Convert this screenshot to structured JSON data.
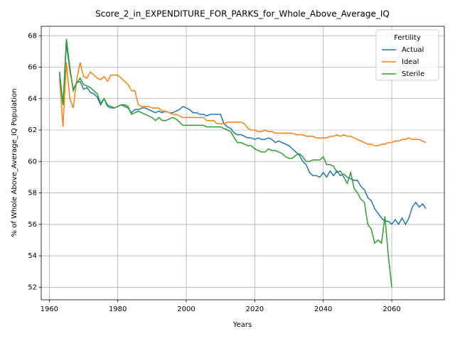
{
  "chart_data": {
    "type": "line",
    "title": "Score_2_in_EXPENDITURE_FOR_PARKS_for_Whole_Above_Average_IQ",
    "xlabel": "Years",
    "ylabel": "% of Whole Above_Average_IQ Population",
    "legend_title": "Fertility",
    "legend": "upper right",
    "grid": true,
    "xlim": [
      1957.65,
      2075.35
    ],
    "ylim": [
      51.2,
      68.6
    ],
    "xticks": [
      1960,
      1980,
      2000,
      2020,
      2040,
      2060
    ],
    "yticks": [
      52,
      54,
      56,
      58,
      60,
      62,
      64,
      66,
      68
    ],
    "x": [
      1963,
      1964,
      1965,
      1966,
      1967,
      1968,
      1969,
      1970,
      1971,
      1972,
      1973,
      1974,
      1975,
      1976,
      1977,
      1978,
      1979,
      1980,
      1981,
      1982,
      1983,
      1984,
      1985,
      1986,
      1987,
      1988,
      1989,
      1990,
      1991,
      1992,
      1993,
      1994,
      1995,
      1996,
      1997,
      1998,
      1999,
      2000,
      2001,
      2002,
      2003,
      2004,
      2005,
      2006,
      2007,
      2008,
      2009,
      2010,
      2011,
      2012,
      2013,
      2014,
      2015,
      2016,
      2017,
      2018,
      2019,
      2020,
      2021,
      2022,
      2023,
      2024,
      2025,
      2026,
      2027,
      2028,
      2029,
      2030,
      2031,
      2032,
      2033,
      2034,
      2035,
      2036,
      2037,
      2038,
      2039,
      2040,
      2041,
      2042,
      2043,
      2044,
      2045,
      2046,
      2047,
      2048,
      2049,
      2050,
      2051,
      2052,
      2053,
      2054,
      2055,
      2056,
      2057,
      2058,
      2059,
      2060,
      2061,
      2062,
      2063,
      2064,
      2065,
      2066,
      2067,
      2068,
      2069,
      2070
    ],
    "series": [
      {
        "name": "Actual",
        "color": "#1f77b4",
        "values": [
          65.7,
          63.6,
          67.5,
          65.8,
          64.6,
          65.0,
          65.1,
          64.6,
          64.7,
          64.4,
          64.3,
          64.1,
          63.6,
          64.0,
          63.5,
          63.4,
          63.4,
          63.5,
          63.6,
          63.5,
          63.4,
          63.1,
          63.3,
          63.3,
          63.4,
          63.4,
          63.3,
          63.2,
          63.1,
          63.2,
          63.1,
          63.2,
          63.1,
          63.1,
          63.2,
          63.3,
          63.5,
          63.4,
          63.3,
          63.1,
          63.1,
          63.0,
          63.0,
          62.9,
          63.0,
          63.0,
          63.0,
          63.0,
          62.4,
          62.2,
          62.1,
          61.8,
          61.7,
          61.7,
          61.6,
          61.5,
          61.5,
          61.4,
          61.5,
          61.4,
          61.4,
          61.5,
          61.4,
          61.2,
          61.3,
          61.2,
          61.1,
          61.0,
          60.8,
          60.6,
          60.4,
          60.0,
          59.8,
          59.3,
          59.1,
          59.1,
          59.0,
          59.3,
          59.0,
          59.4,
          59.1,
          59.4,
          59.1,
          59.2,
          59.0,
          58.9,
          58.8,
          58.8,
          58.4,
          58.2,
          57.7,
          57.5,
          57.0,
          56.7,
          56.4,
          56.2,
          56.2,
          56.0,
          56.3,
          56.0,
          56.4,
          56.0,
          56.4,
          57.1,
          57.4,
          57.1,
          57.3,
          57.0
        ]
      },
      {
        "name": "Ideal",
        "color": "#ff7f0e",
        "values": [
          65.3,
          62.2,
          66.3,
          64.0,
          63.4,
          65.2,
          66.3,
          65.4,
          65.3,
          65.7,
          65.5,
          65.3,
          65.2,
          65.4,
          65.1,
          65.5,
          65.5,
          65.5,
          65.3,
          65.1,
          64.9,
          64.5,
          64.5,
          63.6,
          63.5,
          63.5,
          63.5,
          63.4,
          63.4,
          63.4,
          63.2,
          63.2,
          63.1,
          63.0,
          63.0,
          62.9,
          62.8,
          62.8,
          62.8,
          62.8,
          62.8,
          62.8,
          62.8,
          62.6,
          62.6,
          62.6,
          62.4,
          62.4,
          62.4,
          62.5,
          62.5,
          62.5,
          62.5,
          62.5,
          62.4,
          62.1,
          62.0,
          62.0,
          61.9,
          61.9,
          62.0,
          61.9,
          61.9,
          61.8,
          61.8,
          61.8,
          61.8,
          61.8,
          61.8,
          61.7,
          61.7,
          61.7,
          61.6,
          61.6,
          61.6,
          61.5,
          61.5,
          61.5,
          61.5,
          61.6,
          61.6,
          61.7,
          61.6,
          61.7,
          61.6,
          61.6,
          61.5,
          61.4,
          61.3,
          61.2,
          61.1,
          61.1,
          61.0,
          61.0,
          61.1,
          61.1,
          61.2,
          61.2,
          61.3,
          61.3,
          61.4,
          61.4,
          61.5,
          61.4,
          61.4,
          61.4,
          61.3,
          61.2
        ]
      },
      {
        "name": "Sterile",
        "color": "#2ca02c",
        "values": [
          65.5,
          63.6,
          67.8,
          66.0,
          64.5,
          65.0,
          65.3,
          64.9,
          64.8,
          64.7,
          64.5,
          64.3,
          63.7,
          64.0,
          63.6,
          63.5,
          63.4,
          63.5,
          63.6,
          63.6,
          63.5,
          63.0,
          63.1,
          63.2,
          63.1,
          63.0,
          62.9,
          62.8,
          62.6,
          62.8,
          62.6,
          62.6,
          62.7,
          62.8,
          62.7,
          62.5,
          62.3,
          62.3,
          62.3,
          62.3,
          62.3,
          62.3,
          62.3,
          62.2,
          62.2,
          62.2,
          62.2,
          62.2,
          62.1,
          62.0,
          61.9,
          61.5,
          61.2,
          61.2,
          61.1,
          61.0,
          61.0,
          60.8,
          60.7,
          60.6,
          60.6,
          60.8,
          60.7,
          60.7,
          60.6,
          60.5,
          60.3,
          60.2,
          60.2,
          60.4,
          60.5,
          60.3,
          60.0,
          60.0,
          60.1,
          60.1,
          60.1,
          60.3,
          59.8,
          59.8,
          59.7,
          59.3,
          59.4,
          59.0,
          58.6,
          59.3,
          58.3,
          58.0,
          57.6,
          57.4,
          56.0,
          55.7,
          54.8,
          55.0,
          54.8,
          56.5,
          54.0,
          52.0,
          null,
          null,
          null,
          null,
          null,
          null,
          null,
          null,
          null,
          null
        ]
      }
    ]
  }
}
